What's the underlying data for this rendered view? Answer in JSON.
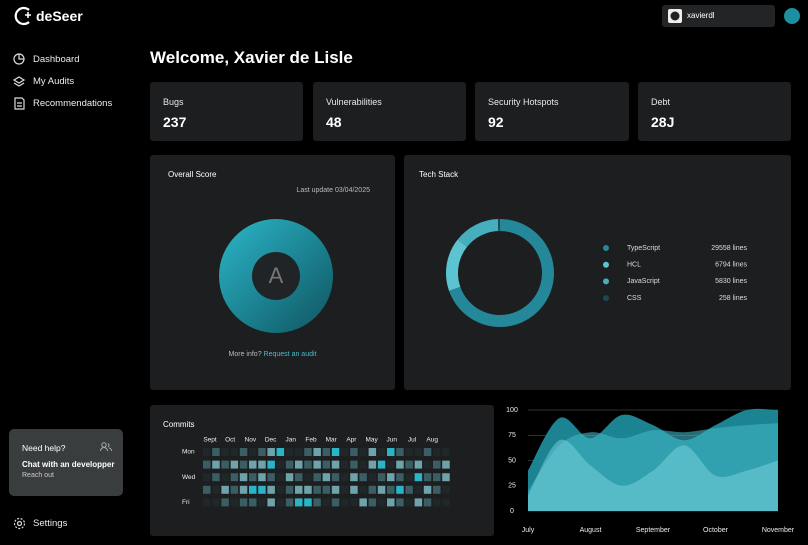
{
  "brand": "deSeer",
  "user": "xavierdl",
  "nav": [
    "Dashboard",
    "My Audits",
    "Recommendations"
  ],
  "settings": "Settings",
  "help": {
    "title": "Need help?",
    "action": "Chat with an developper",
    "link": "Reach out"
  },
  "welcome": "Welcome, Xavier de Lisle",
  "stats": [
    {
      "label": "Bugs",
      "value": 237
    },
    {
      "label": "Vulnerabilities",
      "value": 48
    },
    {
      "label": "Security Hotspots",
      "value": 92
    },
    {
      "label": "Debt",
      "value": "28J"
    }
  ],
  "score": {
    "title": "Overall Score",
    "updated": "Last update 03/04/2025",
    "grade": "A",
    "more": "More info?",
    "link": "Request an audit"
  },
  "chart_data": [
    {
      "type": "donut",
      "title": "Tech Stack",
      "categories": [
        "TypeScript",
        "HCL",
        "JavaScript",
        "CSS"
      ],
      "values": [
        29558,
        6794,
        5830,
        258
      ],
      "value_labels": [
        "29558 lines",
        "6794 lines",
        "5830 lines",
        "258 lines"
      ],
      "colors": [
        "#25889a",
        "#5cc3d0",
        "#47aebd",
        "#1b4a55"
      ]
    },
    {
      "type": "heatmap",
      "title": "Commits",
      "x_labels": [
        "Sept",
        "Oct",
        "Nov",
        "Dec",
        "Jan",
        "Feb",
        "Mar",
        "Apr",
        "May",
        "Jun",
        "Jul",
        "Aug"
      ],
      "y_labels": [
        "Mon",
        null,
        "Wed",
        null,
        "Fri"
      ],
      "colors": [
        "#1f2729",
        "#3b5e64",
        "#6fa3ab",
        "#29b4c8"
      ],
      "values": [
        [
          0,
          1,
          0,
          0,
          1,
          0,
          1,
          2,
          3,
          0,
          0,
          1,
          2,
          1,
          3,
          0,
          1,
          0,
          2,
          0,
          3,
          1,
          0,
          0,
          1,
          0,
          0
        ],
        [
          1,
          2,
          1,
          2,
          1,
          2,
          2,
          3,
          0,
          1,
          2,
          1,
          2,
          1,
          2,
          0,
          1,
          0,
          2,
          3,
          0,
          2,
          1,
          2,
          0,
          1,
          2
        ],
        [
          0,
          1,
          0,
          1,
          2,
          1,
          2,
          1,
          0,
          2,
          1,
          0,
          1,
          2,
          1,
          0,
          2,
          1,
          0,
          1,
          2,
          1,
          0,
          3,
          1,
          1,
          2
        ],
        [
          1,
          0,
          2,
          1,
          2,
          3,
          3,
          2,
          0,
          1,
          2,
          2,
          1,
          1,
          2,
          0,
          2,
          0,
          1,
          2,
          1,
          3,
          1,
          0,
          2,
          1,
          0
        ],
        [
          0,
          0,
          1,
          0,
          1,
          1,
          0,
          2,
          0,
          1,
          3,
          3,
          1,
          0,
          1,
          0,
          0,
          2,
          1,
          0,
          2,
          1,
          0,
          2,
          1,
          0,
          0
        ]
      ]
    },
    {
      "type": "area",
      "categories": [
        "July",
        null,
        "August",
        null,
        "September",
        null,
        "October",
        null,
        "November"
      ],
      "ylim": [
        0,
        100
      ],
      "yticks": [
        0,
        25,
        50,
        75,
        100
      ],
      "grid": true,
      "series": [
        {
          "color": "#1d8a9a",
          "values": [
            40,
            92,
            72,
            95,
            85,
            70,
            85,
            100,
            100
          ]
        },
        {
          "color": "#3fb6c5",
          "values": [
            20,
            65,
            78,
            72,
            80,
            78,
            82,
            85,
            87
          ]
        },
        {
          "color": "#86dbe4",
          "values": [
            15,
            70,
            45,
            25,
            40,
            65,
            35,
            40,
            50
          ]
        }
      ]
    }
  ]
}
